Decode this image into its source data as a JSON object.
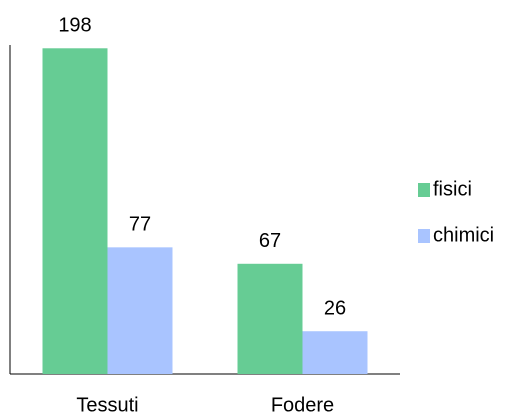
{
  "chart_data": {
    "type": "bar",
    "categories": [
      "Tessuti",
      "Fodere"
    ],
    "series": [
      {
        "name": "fisici",
        "color": "#66cc94",
        "values": [
          198,
          67
        ]
      },
      {
        "name": "chimici",
        "color": "#a9c4ff",
        "values": [
          77,
          26
        ]
      }
    ],
    "ylim": [
      0,
      200
    ],
    "legend": "right"
  }
}
